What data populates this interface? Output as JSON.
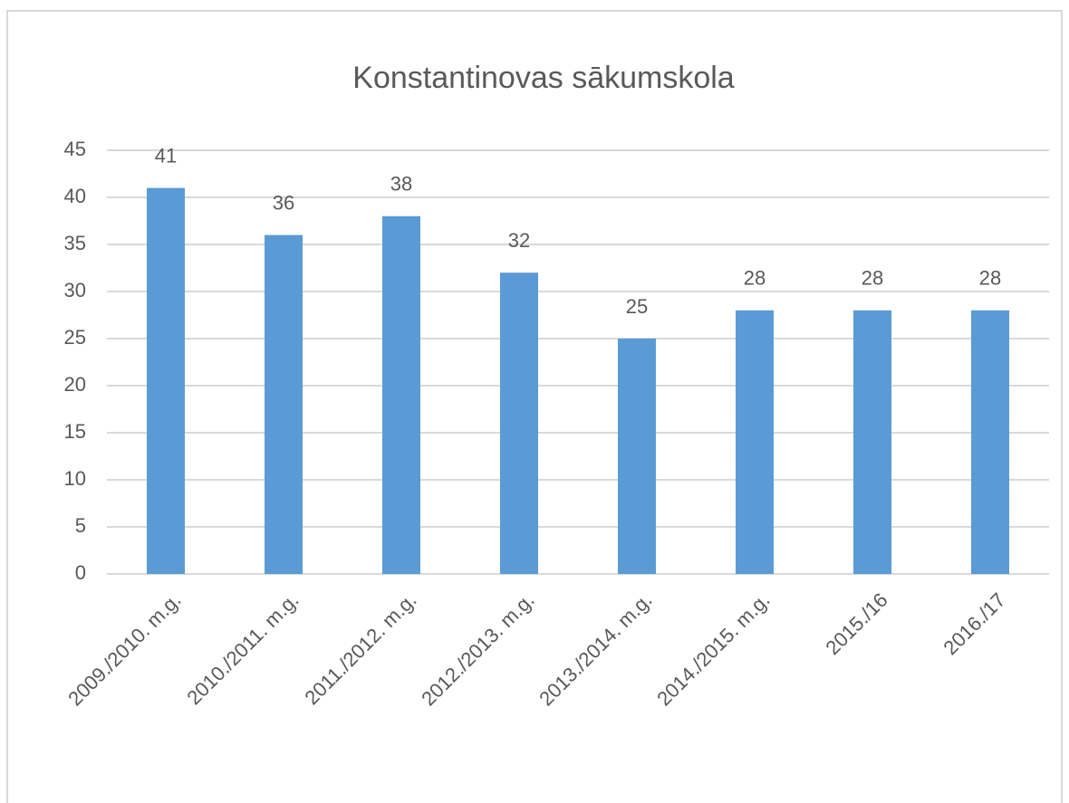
{
  "chart_data": {
    "type": "bar",
    "title": "Konstantinovas sākumskola",
    "categories": [
      "2009./2010. m.g.",
      "2010./2011. m.g.",
      "2011./2012. m.g.",
      "2012./2013. m.g.",
      "2013./2014. m.g.",
      "2014./2015. m.g.",
      "2015./16",
      "2016./17"
    ],
    "values": [
      41,
      36,
      38,
      32,
      25,
      28,
      28,
      28
    ],
    "color": "#5b9bd5",
    "ylim": [
      0,
      45
    ],
    "yticks": [
      0,
      5,
      10,
      15,
      20,
      25,
      30,
      35,
      40,
      45
    ],
    "grid": true
  }
}
